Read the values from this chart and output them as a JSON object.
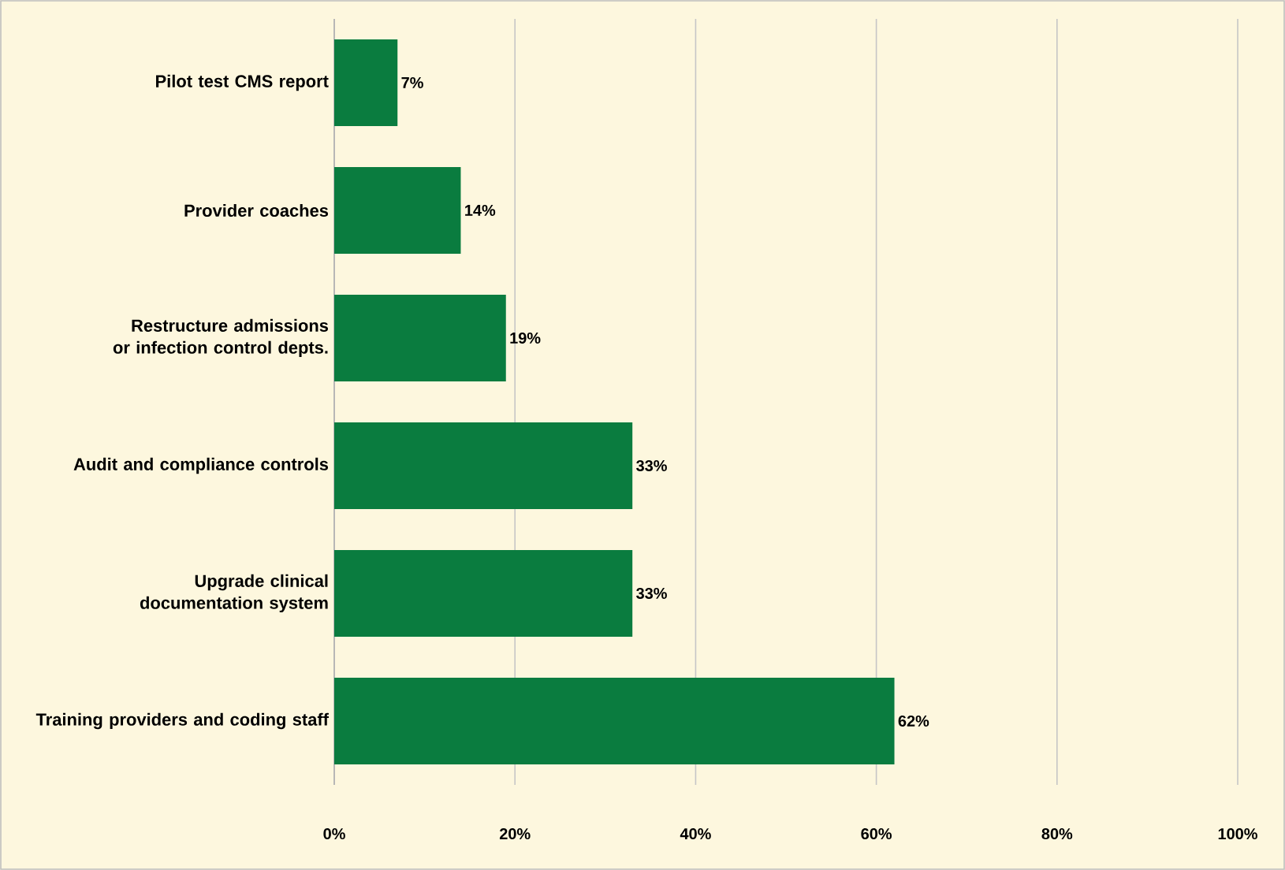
{
  "chart_data": {
    "type": "bar",
    "orientation": "horizontal",
    "categories": [
      "Pilot test CMS report",
      "Provider coaches",
      "Restructure admissions or infection control depts.",
      "Audit and compliance controls",
      "Upgrade clinical documentation system",
      "Training providers and coding staff"
    ],
    "values": [
      7,
      14,
      19,
      33,
      33,
      62
    ],
    "value_labels": [
      "7%",
      "14%",
      "19%",
      "33%",
      "33%",
      "62%"
    ],
    "color": "#0a7c3f",
    "xlim": [
      0,
      100
    ],
    "xticks": [
      {
        "value": 0,
        "label": "0%"
      },
      {
        "value": 20,
        "label": "20%"
      },
      {
        "value": 40,
        "label": "40%"
      },
      {
        "value": 60,
        "label": "60%"
      },
      {
        "value": 80,
        "label": "80%"
      },
      {
        "value": 100,
        "label": "100%"
      }
    ],
    "grid": "x"
  }
}
